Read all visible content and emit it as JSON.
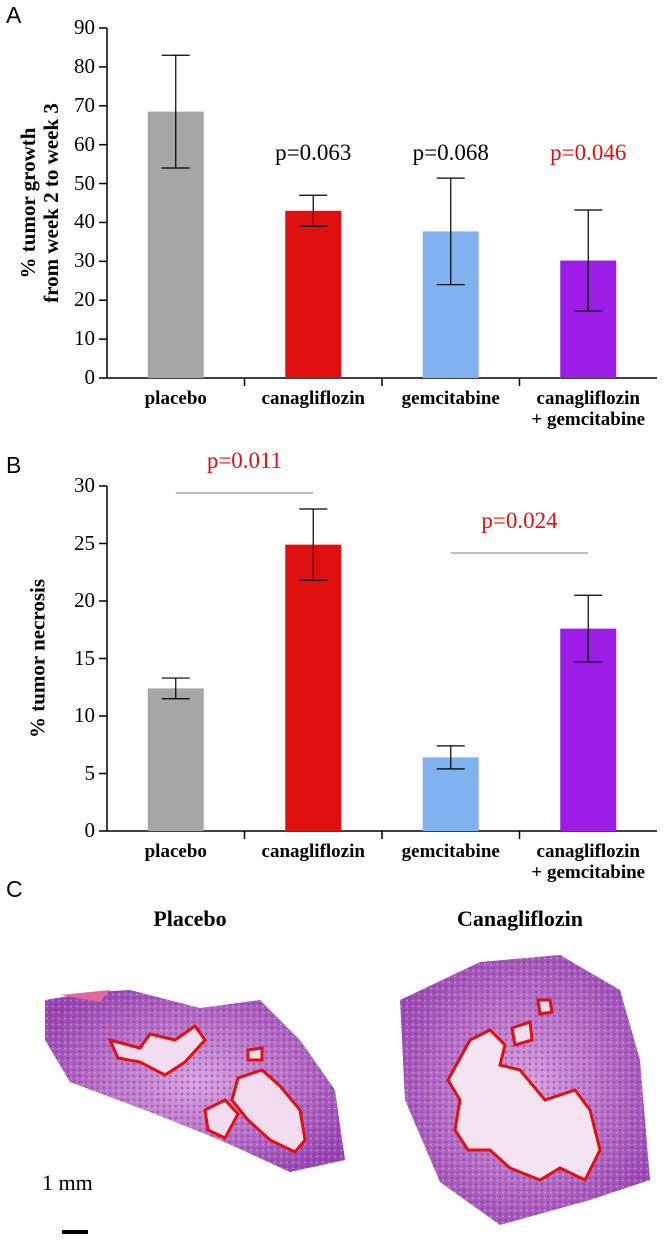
{
  "panel_labels": [
    "A",
    "B",
    "C"
  ],
  "chart_data": [
    {
      "type": "bar",
      "y_label": "% tumor growth\nfrom week 2 to week 3",
      "categories": [
        "placebo",
        "canagliflozin",
        "gemcitabine",
        "canagliflozin\n+ gemcitabine"
      ],
      "values": [
        68.5,
        43,
        37.7,
        30.2
      ],
      "errors": [
        14.5,
        4,
        13.7,
        13
      ],
      "colors": [
        "#a6a6a6",
        "#e01010",
        "#7fb2ee",
        "#9b1de6"
      ],
      "ylim": [
        0,
        90
      ],
      "yticks": [
        0,
        10,
        20,
        30,
        40,
        50,
        60,
        70,
        80,
        90
      ],
      "annotations": [
        {
          "text": "p=0.063",
          "color": "#000000"
        },
        {
          "text": "p=0.068",
          "color": "#000000"
        },
        {
          "text": "p=0.046",
          "color": "#e01010"
        }
      ]
    },
    {
      "type": "bar",
      "y_label": "% tumor necrosis",
      "categories": [
        "placebo",
        "canagliflozin",
        "gemcitabine",
        "canagliflozin\n+ gemcitabine"
      ],
      "values": [
        12.4,
        24.9,
        6.4,
        17.6
      ],
      "errors": [
        0.9,
        3.1,
        1,
        2.9
      ],
      "colors": [
        "#a6a6a6",
        "#e01010",
        "#7fb2ee",
        "#9b1de6"
      ],
      "ylim": [
        0,
        30
      ],
      "yticks": [
        0,
        5,
        10,
        15,
        20,
        25,
        30
      ],
      "annotations": [
        {
          "text": "p=0.011",
          "color": "#e01010"
        },
        {
          "text": "p=0.024",
          "color": "#e01010"
        }
      ]
    }
  ],
  "histology": {
    "titles": [
      "Placebo",
      "Canagliflozin"
    ],
    "scale_bar": "1 mm"
  }
}
